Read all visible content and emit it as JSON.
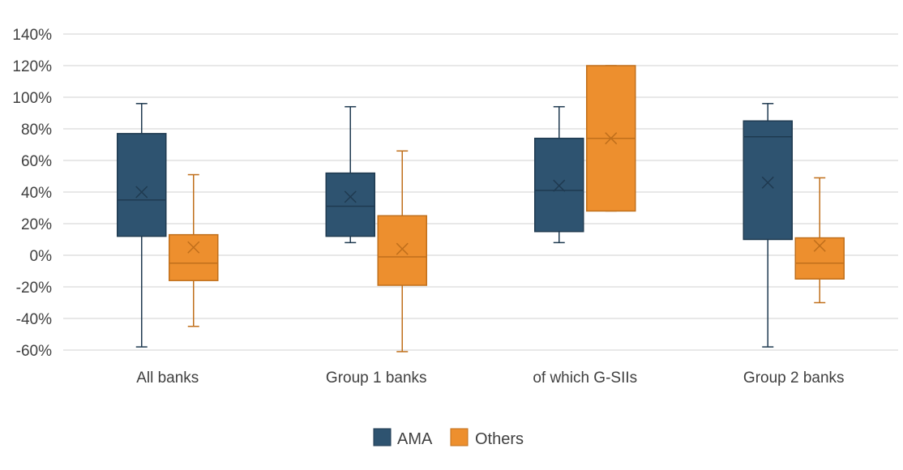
{
  "chart_data": {
    "type": "box",
    "categories": [
      "All banks",
      "Group 1 banks",
      "of which G-SIIs",
      "Group 2 banks"
    ],
    "yticks": [
      "-60%",
      "-40%",
      "-20%",
      "0%",
      "20%",
      "40%",
      "60%",
      "80%",
      "100%",
      "120%",
      "140%"
    ],
    "ylim": [
      -60,
      140
    ],
    "grid": true,
    "legend_position": "bottom",
    "series": [
      {
        "name": "AMA",
        "color": "#2e5370",
        "boxes": [
          {
            "min": -58,
            "q1": 12,
            "median": 35,
            "q3": 77,
            "max": 96,
            "mean": 40
          },
          {
            "min": 8,
            "q1": 12,
            "median": 31,
            "q3": 52,
            "max": 94,
            "mean": 37
          },
          {
            "min": 8,
            "q1": 15,
            "median": 41,
            "q3": 74,
            "max": 94,
            "mean": 44
          },
          {
            "min": -58,
            "q1": 10,
            "median": 75,
            "q3": 85,
            "max": 96,
            "mean": 46
          }
        ]
      },
      {
        "name": "Others",
        "color": "#ed8f2e",
        "boxes": [
          {
            "min": -45,
            "q1": -16,
            "median": -5,
            "q3": 13,
            "max": 51,
            "mean": 5
          },
          {
            "min": -61,
            "q1": -19,
            "median": -1,
            "q3": 25,
            "max": 66,
            "mean": 4
          },
          {
            "min": 28,
            "q1": 28,
            "median": 74,
            "q3": 120,
            "max": 120,
            "mean": 74
          },
          {
            "min": -30,
            "q1": -15,
            "median": -5,
            "q3": 11,
            "max": 49,
            "mean": 6
          }
        ]
      }
    ]
  },
  "legend": {
    "items": [
      {
        "label": "AMA",
        "color": "#2e5370"
      },
      {
        "label": "Others",
        "color": "#ed8f2e"
      }
    ]
  }
}
